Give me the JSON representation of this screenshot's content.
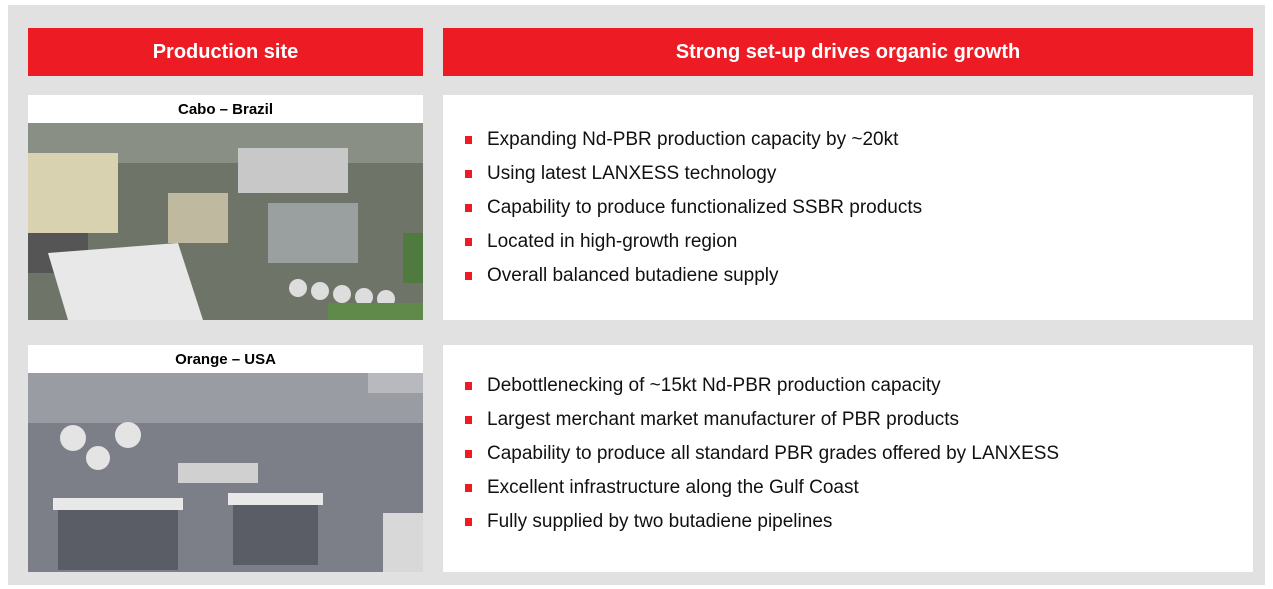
{
  "header": {
    "left": "Production site",
    "right": "Strong set-up drives organic growth"
  },
  "sites": [
    {
      "name": "Cabo – Brazil",
      "bullets": [
        "Expanding Nd-PBR production capacity by ~20kt",
        "Using latest LANXESS technology",
        "Capability to produce functionalized SSBR products",
        "Located in high-growth region",
        "Overall balanced butadiene supply"
      ]
    },
    {
      "name": "Orange – USA",
      "bullets": [
        "Debottlenecking of ~15kt Nd-PBR production capacity",
        "Largest merchant market manufacturer of PBR products",
        "Capability to produce all standard PBR grades offered by LANXESS",
        "Excellent infrastructure along the Gulf Coast",
        "Fully supplied by two butadiene pipelines"
      ]
    }
  ]
}
